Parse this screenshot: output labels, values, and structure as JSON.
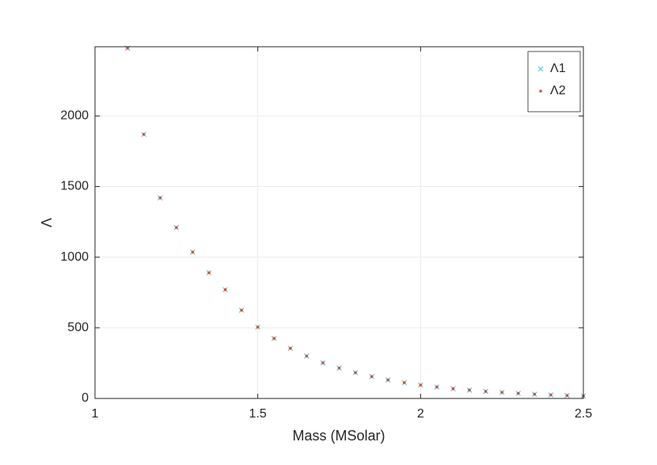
{
  "chart_data": {
    "type": "scatter",
    "x_label": "Mass (MSolar)",
    "y_label": "Λ",
    "xlim": [
      1,
      2.5
    ],
    "xticks": [
      1,
      1.5,
      2,
      2.5
    ],
    "ylim": [
      0,
      2490
    ],
    "yticks": [
      0,
      500,
      1000,
      1500,
      2000
    ],
    "grid": true,
    "legend": "upper right",
    "x": [
      1.1,
      1.15,
      1.2,
      1.25,
      1.3,
      1.35,
      1.4,
      1.45,
      1.5,
      1.55,
      1.6,
      1.65,
      1.7,
      1.75,
      1.8,
      1.85,
      1.9,
      1.95,
      2.0,
      2.05,
      2.1,
      2.15,
      2.2,
      2.25,
      2.3,
      2.35,
      2.4,
      2.45,
      2.5
    ],
    "series": [
      {
        "name": "Λ1",
        "color": "#4dbeee",
        "marker": "x",
        "values": [
          2480,
          1870,
          1420,
          1210,
          1036,
          890,
          770,
          625,
          505,
          425,
          355,
          300,
          252,
          215,
          183,
          155,
          131,
          112,
          95,
          81,
          69,
          59,
          50,
          43,
          36,
          30,
          25,
          21,
          17
        ]
      },
      {
        "name": "Λ2",
        "color": "#d95319",
        "marker": "dot",
        "values": [
          2480,
          1870,
          1420,
          1210,
          1036,
          890,
          770,
          625,
          505,
          425,
          355,
          300,
          252,
          215,
          183,
          155,
          131,
          112,
          95,
          81,
          69,
          59,
          50,
          43,
          36,
          30,
          25,
          21,
          17
        ]
      }
    ]
  }
}
